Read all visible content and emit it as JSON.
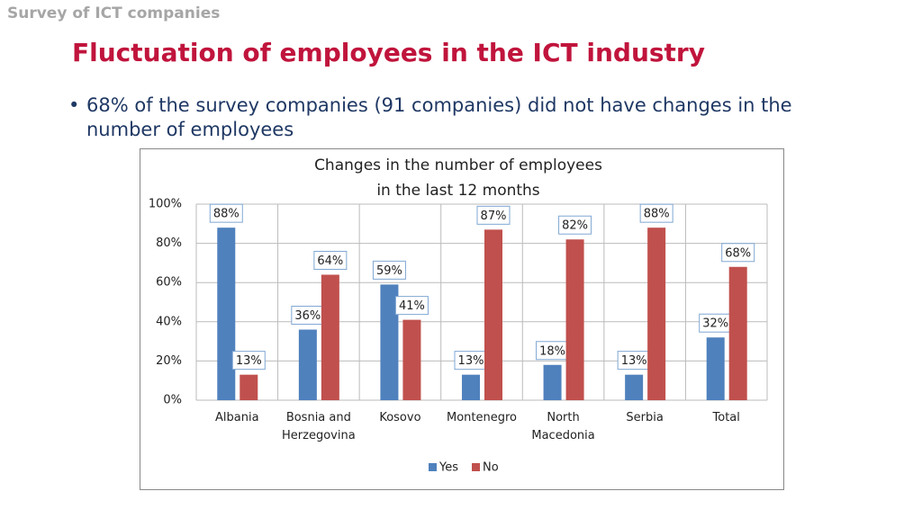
{
  "header": {
    "section": "Survey of ICT companies",
    "title": "Fluctuation of employees in the ICT industry",
    "bullet": "68% of the survey companies (91 companies) did not have changes in the number of employees"
  },
  "chart_data": {
    "type": "bar",
    "title": [
      "Changes in the number of employees",
      "in the last 12 months"
    ],
    "categories": [
      "Albania",
      "Bosnia and Herzegovina",
      "Kosovo",
      "Montenegro",
      "North Macedonia",
      "Serbia",
      "Total"
    ],
    "series": [
      {
        "name": "Yes",
        "color": "#4f81bd",
        "values": [
          88,
          36,
          59,
          13,
          18,
          13,
          32
        ],
        "value_labels": [
          "88%",
          "36%",
          "59%",
          "13%",
          "18%",
          "13%",
          "32%"
        ]
      },
      {
        "name": "No",
        "color": "#c0504d",
        "values": [
          13,
          64,
          41,
          87,
          82,
          88,
          68
        ],
        "value_labels": [
          "13%",
          "64%",
          "41%",
          "87%",
          "82%",
          "88%",
          "68%"
        ]
      }
    ],
    "ylim": [
      0,
      100
    ],
    "yticks": [
      {
        "value": 0,
        "label": "0%"
      },
      {
        "value": 20,
        "label": "20%"
      },
      {
        "value": 40,
        "label": "40%"
      },
      {
        "value": 60,
        "label": "60%"
      },
      {
        "value": 80,
        "label": "80%"
      },
      {
        "value": 100,
        "label": "100%"
      }
    ],
    "grid": true,
    "legend": "bottom"
  }
}
